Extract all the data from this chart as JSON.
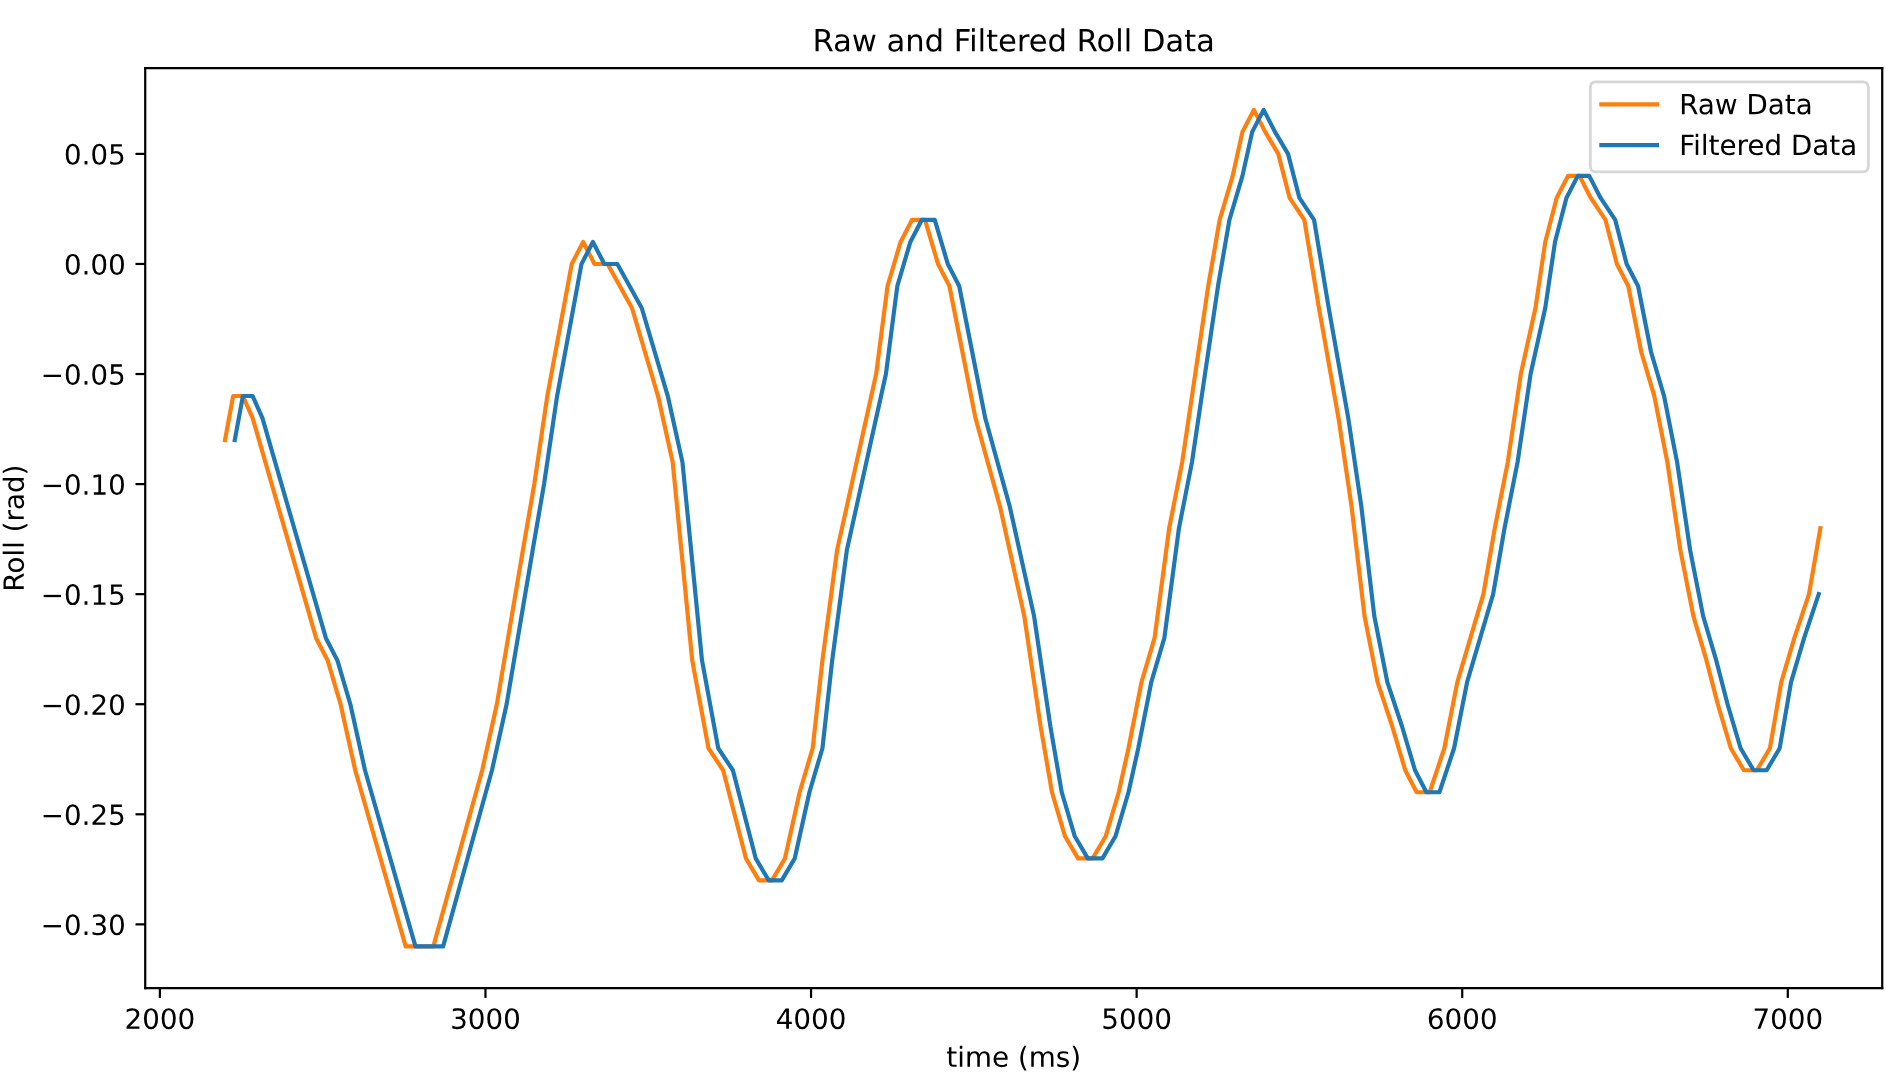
{
  "chart_data": {
    "type": "line",
    "title": "Raw and Filtered Roll Data",
    "xlabel": "time (ms)",
    "ylabel": "Roll (rad)",
    "xlim": [
      1955,
      7290
    ],
    "ylim": [
      -0.329,
      0.089
    ],
    "xticks": [
      2000,
      3000,
      4000,
      5000,
      6000,
      7000
    ],
    "yticks": [
      {
        "value": 0.05,
        "label": "0.05"
      },
      {
        "value": 0.0,
        "label": "0.00"
      },
      {
        "value": -0.05,
        "label": "−0.05"
      },
      {
        "value": -0.1,
        "label": "−0.10"
      },
      {
        "value": -0.15,
        "label": "−0.15"
      },
      {
        "value": -0.2,
        "label": "−0.20"
      },
      {
        "value": -0.25,
        "label": "−0.25"
      },
      {
        "value": -0.3,
        "label": "−0.30"
      }
    ],
    "grid": false,
    "legend": "top right",
    "line_style": "solid",
    "marker": "none",
    "series": [
      {
        "name": "Raw Data",
        "color": "#ff7f0e",
        "x": [
          2200,
          2225,
          2255,
          2285,
          2480,
          2515,
          2555,
          2600,
          2755,
          2840,
          2990,
          3035,
          3115,
          3150,
          3190,
          3265,
          3300,
          3335,
          3375,
          3450,
          3530,
          3575,
          3635,
          3685,
          3730,
          3800,
          3840,
          3880,
          3920,
          3965,
          4005,
          4035,
          4080,
          4125,
          4155,
          4200,
          4235,
          4275,
          4310,
          4350,
          4390,
          4425,
          4465,
          4505,
          4580,
          4655,
          4705,
          4740,
          4780,
          4820,
          4865,
          4905,
          4945,
          4975,
          5015,
          5055,
          5100,
          5140,
          5180,
          5220,
          5255,
          5295,
          5325,
          5360,
          5395,
          5435,
          5470,
          5515,
          5560,
          5620,
          5660,
          5700,
          5740,
          5785,
          5825,
          5860,
          5900,
          5945,
          5985,
          6025,
          6065,
          6100,
          6140,
          6180,
          6225,
          6255,
          6290,
          6325,
          6360,
          6395,
          6440,
          6475,
          6510,
          6550,
          6590,
          6630,
          6670,
          6710,
          6750,
          6785,
          6825,
          6865,
          6905,
          6945,
          6980,
          7020,
          7065,
          7100
        ],
        "values": [
          -0.08,
          -0.06,
          -0.06,
          -0.07,
          -0.17,
          -0.18,
          -0.2,
          -0.23,
          -0.31,
          -0.31,
          -0.23,
          -0.2,
          -0.13,
          -0.1,
          -0.06,
          0.0,
          0.01,
          0.0,
          0.0,
          -0.02,
          -0.06,
          -0.09,
          -0.18,
          -0.22,
          -0.23,
          -0.27,
          -0.28,
          -0.28,
          -0.27,
          -0.24,
          -0.22,
          -0.18,
          -0.13,
          -0.1,
          -0.08,
          -0.05,
          -0.01,
          0.01,
          0.02,
          0.02,
          0.0,
          -0.01,
          -0.04,
          -0.07,
          -0.11,
          -0.16,
          -0.21,
          -0.24,
          -0.26,
          -0.27,
          -0.27,
          -0.26,
          -0.24,
          -0.22,
          -0.19,
          -0.17,
          -0.12,
          -0.09,
          -0.05,
          -0.01,
          0.02,
          0.04,
          0.06,
          0.07,
          0.06,
          0.05,
          0.03,
          0.02,
          -0.02,
          -0.07,
          -0.11,
          -0.16,
          -0.19,
          -0.21,
          -0.23,
          -0.24,
          -0.24,
          -0.22,
          -0.19,
          -0.17,
          -0.15,
          -0.12,
          -0.09,
          -0.05,
          -0.02,
          0.01,
          0.03,
          0.04,
          0.04,
          0.03,
          0.02,
          0.0,
          -0.01,
          -0.04,
          -0.06,
          -0.09,
          -0.13,
          -0.16,
          -0.18,
          -0.2,
          -0.22,
          -0.23,
          -0.23,
          -0.22,
          -0.19,
          -0.17,
          -0.15,
          -0.12
        ]
      },
      {
        "name": "Filtered Data",
        "color": "#1f77b4",
        "x": [
          2230,
          2255,
          2285,
          2315,
          2510,
          2545,
          2585,
          2630,
          2785,
          2870,
          3020,
          3065,
          3145,
          3180,
          3220,
          3295,
          3330,
          3365,
          3405,
          3480,
          3560,
          3605,
          3665,
          3715,
          3760,
          3830,
          3870,
          3910,
          3950,
          3995,
          4035,
          4065,
          4110,
          4155,
          4185,
          4230,
          4265,
          4305,
          4340,
          4380,
          4420,
          4455,
          4495,
          4535,
          4610,
          4685,
          4735,
          4770,
          4810,
          4850,
          4895,
          4935,
          4975,
          5005,
          5045,
          5085,
          5130,
          5170,
          5210,
          5250,
          5285,
          5325,
          5355,
          5390,
          5425,
          5465,
          5500,
          5545,
          5590,
          5650,
          5690,
          5730,
          5770,
          5815,
          5855,
          5890,
          5930,
          5975,
          6015,
          6055,
          6095,
          6130,
          6170,
          6210,
          6255,
          6285,
          6320,
          6355,
          6390,
          6425,
          6470,
          6505,
          6540,
          6580,
          6620,
          6660,
          6700,
          6740,
          6780,
          6815,
          6855,
          6895,
          6935,
          6975,
          7010,
          7050,
          7095
        ],
        "values": [
          -0.08,
          -0.06,
          -0.06,
          -0.07,
          -0.17,
          -0.18,
          -0.2,
          -0.23,
          -0.31,
          -0.31,
          -0.23,
          -0.2,
          -0.13,
          -0.1,
          -0.06,
          0.0,
          0.01,
          0.0,
          0.0,
          -0.02,
          -0.06,
          -0.09,
          -0.18,
          -0.22,
          -0.23,
          -0.27,
          -0.28,
          -0.28,
          -0.27,
          -0.24,
          -0.22,
          -0.18,
          -0.13,
          -0.1,
          -0.08,
          -0.05,
          -0.01,
          0.01,
          0.02,
          0.02,
          0.0,
          -0.01,
          -0.04,
          -0.07,
          -0.11,
          -0.16,
          -0.21,
          -0.24,
          -0.26,
          -0.27,
          -0.27,
          -0.26,
          -0.24,
          -0.22,
          -0.19,
          -0.17,
          -0.12,
          -0.09,
          -0.05,
          -0.01,
          0.02,
          0.04,
          0.06,
          0.07,
          0.06,
          0.05,
          0.03,
          0.02,
          -0.02,
          -0.07,
          -0.11,
          -0.16,
          -0.19,
          -0.21,
          -0.23,
          -0.24,
          -0.24,
          -0.22,
          -0.19,
          -0.17,
          -0.15,
          -0.12,
          -0.09,
          -0.05,
          -0.02,
          0.01,
          0.03,
          0.04,
          0.04,
          0.03,
          0.02,
          0.0,
          -0.01,
          -0.04,
          -0.06,
          -0.09,
          -0.13,
          -0.16,
          -0.18,
          -0.2,
          -0.22,
          -0.23,
          -0.23,
          -0.22,
          -0.19,
          -0.17,
          -0.15
        ]
      }
    ]
  }
}
